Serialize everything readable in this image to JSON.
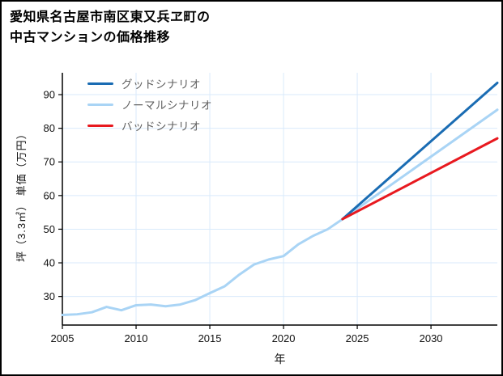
{
  "chart_data": {
    "type": "line",
    "title_lines": [
      "愛知県名古屋市南区東又兵ヱ町の",
      "中古マンションの価格推移"
    ],
    "xlabel": "年",
    "ylabel": "坪（3.3㎡） 単価（万円）",
    "xlim": [
      2005,
      2034.5
    ],
    "ylim": [
      21.5,
      96.5
    ],
    "xticks": [
      2005,
      2010,
      2015,
      2020,
      2025,
      2030
    ],
    "yticks": [
      30,
      40,
      50,
      60,
      70,
      80,
      90
    ],
    "grid": true,
    "grid_color": "#d9eafb",
    "axis_color": "#000000",
    "legend_position": "upper-left-inside",
    "draw_order": [
      1,
      0,
      2
    ],
    "series": [
      {
        "name": "グッドシナリオ",
        "color": "#1a6cb3",
        "width": 3,
        "x": [
          2024,
          2034.5
        ],
        "y": [
          53,
          93.5
        ]
      },
      {
        "name": "ノーマルシナリオ",
        "color": "#a9d4f5",
        "width": 3,
        "x": [
          2005,
          2006,
          2007,
          2008,
          2009,
          2010,
          2011,
          2012,
          2013,
          2014,
          2015,
          2016,
          2017,
          2018,
          2019,
          2020,
          2021,
          2022,
          2023,
          2024,
          2034.5
        ],
        "y": [
          24.5,
          24.7,
          25.3,
          26.9,
          25.9,
          27.4,
          27.6,
          27.1,
          27.6,
          28.9,
          31,
          33,
          36.5,
          39.5,
          41,
          42,
          45.5,
          48,
          50,
          53,
          85.5
        ]
      },
      {
        "name": "バッドシナリオ",
        "color": "#e8191f",
        "width": 3,
        "x": [
          2024,
          2034.5
        ],
        "y": [
          53,
          77
        ]
      }
    ]
  }
}
